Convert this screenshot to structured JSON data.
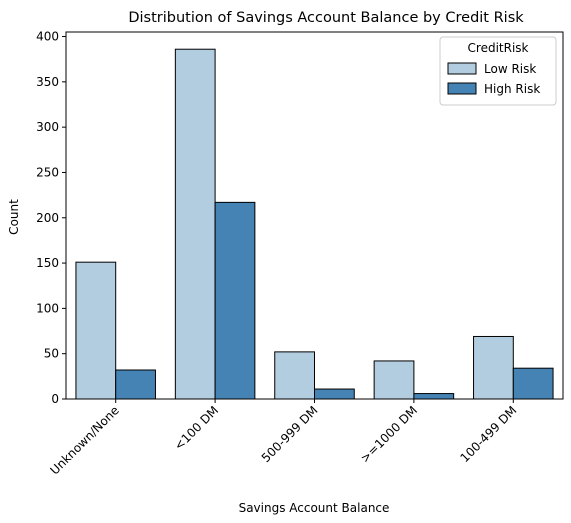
{
  "chart_data": {
    "type": "bar",
    "title": "Distribution of Savings Account Balance by Credit Risk",
    "xlabel": "Savings Account Balance",
    "ylabel": "Count",
    "categories": [
      "Unknown/None",
      "<100 DM",
      "500-999 DM",
      ">=1000 DM",
      "100-499 DM"
    ],
    "series": [
      {
        "name": "Low Risk",
        "values": [
          151,
          386,
          52,
          42,
          69
        ]
      },
      {
        "name": "High Risk",
        "values": [
          32,
          217,
          11,
          6,
          34
        ]
      }
    ],
    "ylim": [
      0,
      405
    ],
    "yticks": [
      0,
      50,
      100,
      150,
      200,
      250,
      300,
      350,
      400
    ],
    "grid": false,
    "legend": {
      "title": "CreditRisk",
      "placement": "top-right"
    },
    "colors": {
      "Low Risk": "#b3cde0",
      "High Risk": "#4683b5"
    }
  }
}
